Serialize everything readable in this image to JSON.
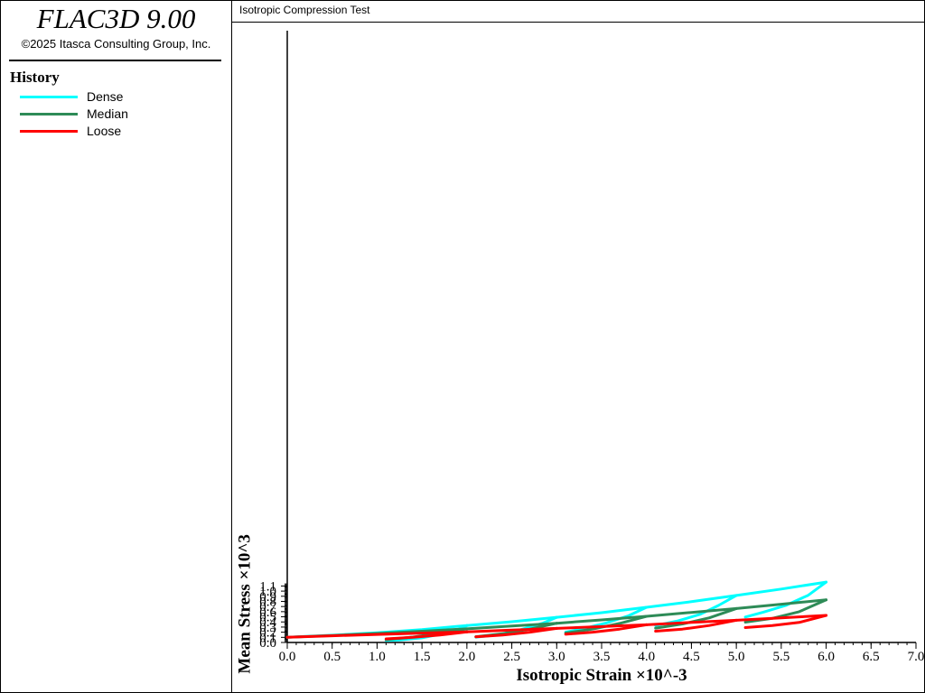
{
  "app": {
    "title": "FLAC3D 9.00",
    "copyright": "©2025 Itasca Consulting Group, Inc."
  },
  "legend": {
    "title": "History",
    "items": [
      {
        "label": "Dense",
        "color": "#00FFFF"
      },
      {
        "label": "Median",
        "color": "#2E8B57"
      },
      {
        "label": "Loose",
        "color": "#FF0000"
      }
    ]
  },
  "chart_data": {
    "type": "line",
    "title": "Isotropic Compression Test",
    "xlabel": "Isotropic Strain ×10^-3",
    "ylabel": "Mean Stress ×10^3",
    "xlim": [
      0,
      7.0
    ],
    "ylim": [
      0,
      1.15
    ],
    "x_ticks": [
      "0.0",
      "0.5",
      "1.0",
      "1.5",
      "2.0",
      "2.5",
      "3.0",
      "3.5",
      "4.0",
      "4.5",
      "5.0",
      "5.5",
      "6.0",
      "6.5",
      "7.0"
    ],
    "y_ticks": [
      "0.0",
      "0.1",
      "0.2",
      "0.3",
      "0.4",
      "0.5",
      "0.6",
      "0.7",
      "0.8",
      "0.9",
      "1.0",
      "1.1"
    ],
    "grid": false,
    "series": [
      {
        "name": "Dense",
        "color": "#00FFFF",
        "segments": [
          [
            [
              0.0,
              0.102
            ],
            [
              0.5,
              0.14
            ],
            [
              1.0,
              0.19
            ],
            [
              1.5,
              0.25
            ],
            [
              2.0,
              0.33
            ]
          ],
          [
            [
              2.0,
              0.33
            ],
            [
              1.9,
              0.25
            ],
            [
              1.7,
              0.16
            ],
            [
              1.5,
              0.09
            ],
            [
              1.25,
              0.05
            ],
            [
              1.1,
              0.038
            ]
          ],
          [
            [
              2.0,
              0.33
            ],
            [
              2.5,
              0.405
            ],
            [
              3.0,
              0.49
            ]
          ],
          [
            [
              3.0,
              0.49
            ],
            [
              2.85,
              0.38
            ],
            [
              2.6,
              0.25
            ],
            [
              2.35,
              0.15
            ],
            [
              2.1,
              0.103
            ]
          ],
          [
            [
              3.0,
              0.49
            ],
            [
              3.5,
              0.58
            ],
            [
              4.0,
              0.685
            ]
          ],
          [
            [
              4.0,
              0.685
            ],
            [
              3.8,
              0.52
            ],
            [
              3.55,
              0.38
            ],
            [
              3.3,
              0.27
            ],
            [
              3.1,
              0.2
            ]
          ],
          [
            [
              4.0,
              0.685
            ],
            [
              4.5,
              0.795
            ],
            [
              5.0,
              0.915
            ]
          ],
          [
            [
              5.0,
              0.915
            ],
            [
              4.8,
              0.72
            ],
            [
              4.6,
              0.55
            ],
            [
              4.35,
              0.42
            ],
            [
              4.1,
              0.33
            ]
          ],
          [
            [
              5.0,
              0.915
            ],
            [
              5.5,
              1.04
            ],
            [
              6.0,
              1.175
            ]
          ],
          [
            [
              6.0,
              1.175
            ],
            [
              5.8,
              0.92
            ],
            [
              5.55,
              0.72
            ],
            [
              5.3,
              0.59
            ],
            [
              5.1,
              0.495
            ]
          ]
        ]
      },
      {
        "name": "Median",
        "color": "#2E8B57",
        "segments": [
          [
            [
              0.0,
              0.102
            ],
            [
              0.5,
              0.135
            ],
            [
              1.0,
              0.175
            ],
            [
              1.5,
              0.22
            ],
            [
              2.0,
              0.265
            ]
          ],
          [
            [
              2.0,
              0.265
            ],
            [
              1.7,
              0.18
            ],
            [
              1.4,
              0.105
            ],
            [
              1.1,
              0.055
            ]
          ],
          [
            [
              2.0,
              0.265
            ],
            [
              2.5,
              0.32
            ],
            [
              3.0,
              0.375
            ]
          ],
          [
            [
              3.0,
              0.375
            ],
            [
              2.7,
              0.26
            ],
            [
              2.4,
              0.17
            ],
            [
              2.1,
              0.113
            ]
          ],
          [
            [
              3.0,
              0.375
            ],
            [
              3.5,
              0.44
            ],
            [
              4.0,
              0.51
            ]
          ],
          [
            [
              4.0,
              0.51
            ],
            [
              3.7,
              0.37
            ],
            [
              3.4,
              0.26
            ],
            [
              3.1,
              0.185
            ]
          ],
          [
            [
              4.0,
              0.51
            ],
            [
              4.5,
              0.585
            ],
            [
              5.0,
              0.66
            ]
          ],
          [
            [
              5.0,
              0.66
            ],
            [
              4.7,
              0.48
            ],
            [
              4.4,
              0.36
            ],
            [
              4.1,
              0.28
            ]
          ],
          [
            [
              5.0,
              0.66
            ],
            [
              5.5,
              0.745
            ],
            [
              6.0,
              0.83
            ]
          ],
          [
            [
              6.0,
              0.83
            ],
            [
              5.7,
              0.6
            ],
            [
              5.4,
              0.47
            ],
            [
              5.1,
              0.395
            ]
          ]
        ]
      },
      {
        "name": "Loose",
        "color": "#FF0000",
        "segments": [
          [
            [
              0.0,
              0.102
            ],
            [
              0.5,
              0.13
            ],
            [
              1.0,
              0.157
            ],
            [
              1.5,
              0.182
            ],
            [
              2.0,
              0.205
            ]
          ],
          [
            [
              2.0,
              0.205
            ],
            [
              1.7,
              0.145
            ],
            [
              1.4,
              0.1
            ],
            [
              1.1,
              0.07
            ]
          ],
          [
            [
              2.0,
              0.205
            ],
            [
              2.5,
              0.24
            ],
            [
              3.0,
              0.275
            ]
          ],
          [
            [
              3.0,
              0.275
            ],
            [
              2.7,
              0.2
            ],
            [
              2.4,
              0.145
            ],
            [
              2.1,
              0.11
            ]
          ],
          [
            [
              3.0,
              0.275
            ],
            [
              3.5,
              0.31
            ],
            [
              4.0,
              0.345
            ]
          ],
          [
            [
              4.0,
              0.345
            ],
            [
              3.7,
              0.26
            ],
            [
              3.4,
              0.2
            ],
            [
              3.1,
              0.16
            ]
          ],
          [
            [
              4.0,
              0.345
            ],
            [
              4.5,
              0.39
            ],
            [
              5.0,
              0.433
            ]
          ],
          [
            [
              5.0,
              0.433
            ],
            [
              4.7,
              0.33
            ],
            [
              4.4,
              0.26
            ],
            [
              4.1,
              0.22
            ]
          ],
          [
            [
              5.0,
              0.433
            ],
            [
              5.5,
              0.48
            ],
            [
              6.0,
              0.528
            ]
          ],
          [
            [
              6.0,
              0.528
            ],
            [
              5.7,
              0.39
            ],
            [
              5.4,
              0.33
            ],
            [
              5.1,
              0.29
            ]
          ]
        ]
      }
    ]
  }
}
